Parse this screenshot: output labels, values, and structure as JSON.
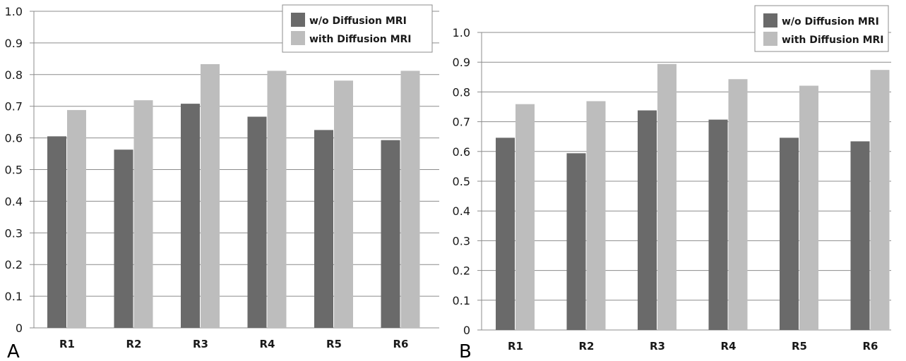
{
  "chart_data": [
    {
      "type": "bar",
      "panel_label": "A",
      "categories": [
        "R1",
        "R2",
        "R3",
        "R4",
        "R5",
        "R6"
      ],
      "series": [
        {
          "name": "w/o Diffusion MRI",
          "values": [
            0.605,
            0.563,
            0.708,
            0.667,
            0.625,
            0.593
          ],
          "color": "#6a6a6a"
        },
        {
          "name": "with Diffusion MRI",
          "values": [
            0.688,
            0.719,
            0.833,
            0.812,
            0.781,
            0.812
          ],
          "color": "#bdbdbd"
        }
      ],
      "yticks": [
        "0",
        "0.1",
        "0.2",
        "0.3",
        "0.4",
        "0.5",
        "0.6",
        "0.7",
        "0.8",
        "0.9",
        "1.0"
      ],
      "ylim": [
        0,
        1
      ],
      "grid": true,
      "legend": "top-right"
    },
    {
      "type": "bar",
      "panel_label": "B",
      "categories": [
        "R1",
        "R2",
        "R3",
        "R4",
        "R5",
        "R6"
      ],
      "series": [
        {
          "name": "w/o Diffusion MRI",
          "values": [
            0.646,
            0.594,
            0.738,
            0.707,
            0.646,
            0.634
          ],
          "color": "#6a6a6a"
        },
        {
          "name": "with Diffusion MRI",
          "values": [
            0.759,
            0.769,
            0.894,
            0.843,
            0.821,
            0.874
          ],
          "color": "#bdbdbd"
        }
      ],
      "yticks": [
        "0",
        "0.1",
        "0.2",
        "0.3",
        "0.4",
        "0.5",
        "0.6",
        "0.7",
        "0.8",
        "0.9",
        "1.0"
      ],
      "ylim": [
        0,
        1
      ],
      "grid": true,
      "legend": "top-right"
    }
  ]
}
